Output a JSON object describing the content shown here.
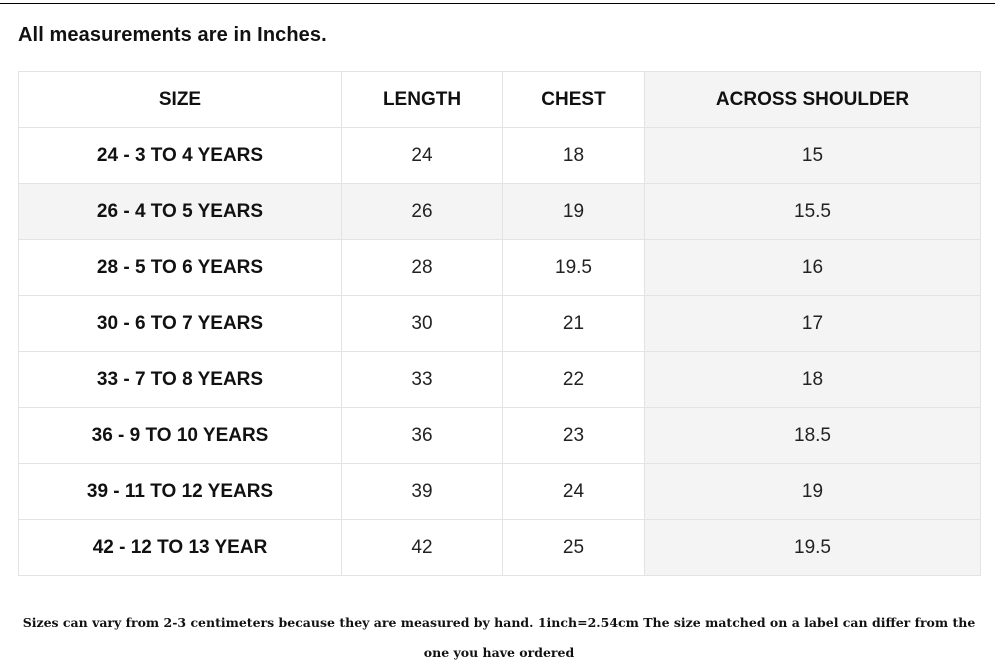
{
  "heading": "All measurements are in Inches.",
  "table": {
    "headers": {
      "size": "SIZE",
      "length": "LENGTH",
      "chest": "CHEST",
      "shoulder": "ACROSS SHOULDER"
    },
    "rows": [
      {
        "size": "24 - 3 TO 4 YEARS",
        "length": "24",
        "chest": "18",
        "shoulder": "15"
      },
      {
        "size": "26 - 4 TO 5 YEARS",
        "length": "26",
        "chest": "19",
        "shoulder": "15.5"
      },
      {
        "size": "28 - 5 TO 6 YEARS",
        "length": "28",
        "chest": "19.5",
        "shoulder": "16"
      },
      {
        "size": "30 - 6 TO 7 YEARS",
        "length": "30",
        "chest": "21",
        "shoulder": "17"
      },
      {
        "size": "33 - 7 TO 8 YEARS",
        "length": "33",
        "chest": "22",
        "shoulder": "18"
      },
      {
        "size": "36 - 9 TO 10 YEARS",
        "length": "36",
        "chest": "23",
        "shoulder": "18.5"
      },
      {
        "size": "39 - 11 TO 12 YEARS",
        "length": "39",
        "chest": "24",
        "shoulder": "19"
      },
      {
        "size": "42 - 12 TO 13 YEAR",
        "length": "42",
        "chest": "25",
        "shoulder": "19.5"
      }
    ]
  },
  "footnote": "Sizes can vary from 2-3 centimeters because they are measured by hand. 1inch=2.54cm The size matched on a label can differ from the one you have ordered",
  "colors": {
    "row_alt_bg": "#f4f4f4",
    "border": "#e3e3e3",
    "text": "#111111"
  }
}
